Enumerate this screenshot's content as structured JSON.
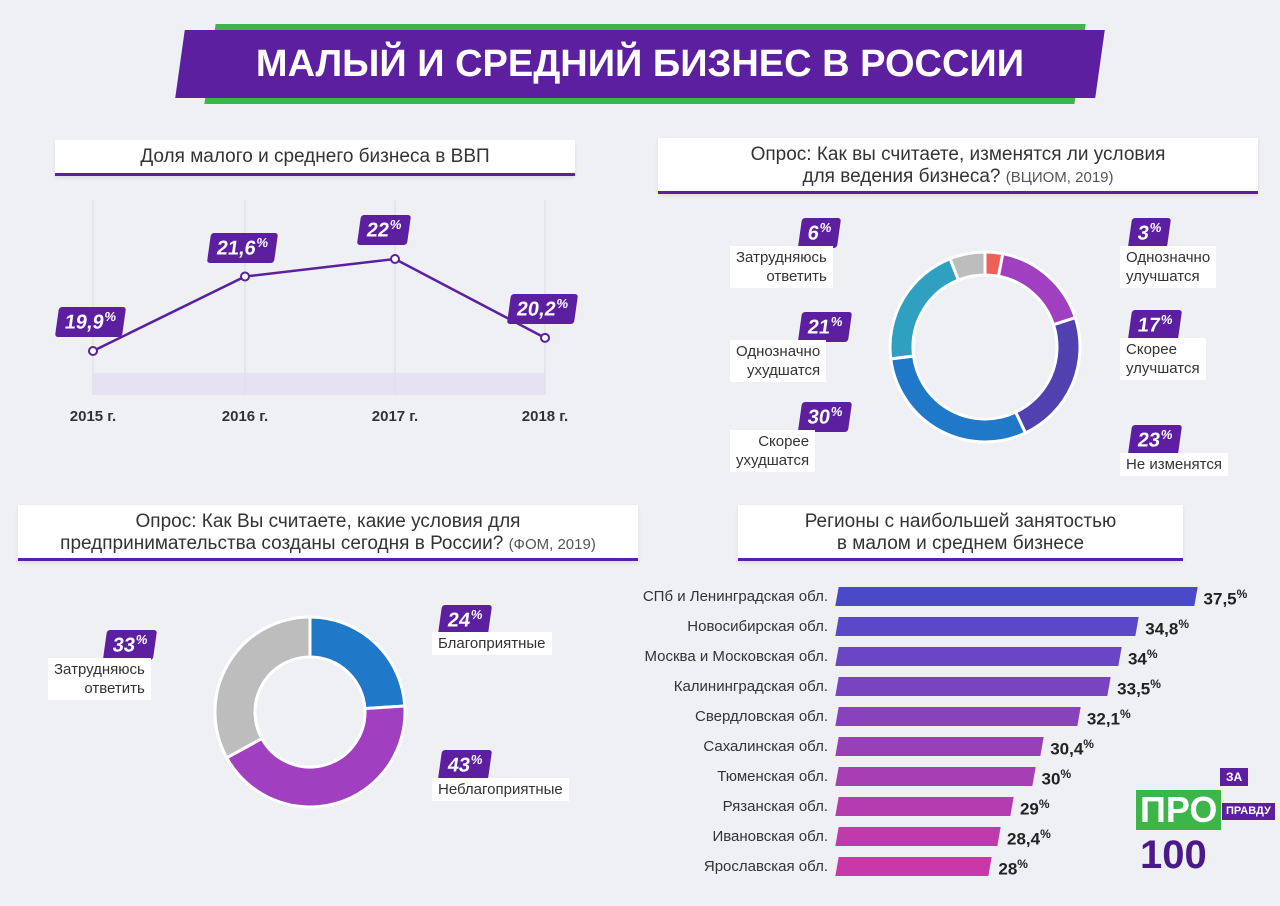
{
  "header": {
    "title": "МАЛЫЙ И СРЕДНИЙ БИЗНЕС В РОССИИ"
  },
  "colors": {
    "accent": "#5b1fa0",
    "green": "#3cb54a"
  },
  "chart_data": [
    {
      "type": "line",
      "title": "Доля малого и среднего бизнеса в ВВП",
      "categories": [
        "2015 г.",
        "2016 г.",
        "2017 г.",
        "2018 г."
      ],
      "values": [
        19.9,
        21.6,
        22,
        20.2
      ],
      "labels": [
        "19,9",
        "21,6",
        "22",
        "20,2"
      ],
      "unit": "%",
      "ylim": [
        18.9,
        22.3
      ],
      "color": "#5b1fa0"
    },
    {
      "type": "pie",
      "title": "Опрос: Как вы считаете, изменятся ли условия для ведения бизнеса?",
      "source": "(ВЦИОМ, 2019)",
      "title_line1": "Опрос: Как вы считаете, изменятся ли условия",
      "title_line2": "для ведения бизнеса?",
      "slices": [
        {
          "label": "Однозначно улучшатся",
          "line1": "Однозначно",
          "line2": "улучшатся",
          "value": 3,
          "color": "#f0605a"
        },
        {
          "label": "Скорее улучшатся",
          "line1": "Скорее",
          "line2": "улучшатся",
          "value": 17,
          "color": "#a040c0"
        },
        {
          "label": "Не изменятся",
          "line1": "Не изменятся",
          "line2": "",
          "value": 23,
          "color": "#5040b0"
        },
        {
          "label": "Скорее ухудшатся",
          "line1": "Скорее",
          "line2": "ухудшатся",
          "value": 30,
          "color": "#1f78c8"
        },
        {
          "label": "Однозначно ухудшатся",
          "line1": "Однозначно",
          "line2": "ухудшатся",
          "value": 21,
          "color": "#30a0c0"
        },
        {
          "label": "Затрудняюсь ответить",
          "line1": "Затрудняюсь",
          "line2": "ответить",
          "value": 6,
          "color": "#bdbdbd"
        }
      ]
    },
    {
      "type": "pie",
      "title_line1": "Опрос: Как Вы считаете, какие условия для",
      "title_line2": "предпринимательства созданы сегодня в России?",
      "source": "(ФОМ, 2019)",
      "slices": [
        {
          "label": "Благоприятные",
          "value": 24,
          "color": "#1f78c8"
        },
        {
          "label": "Неблагоприятные",
          "value": 43,
          "color": "#a040c0"
        },
        {
          "label": "Затрудняюсь ответить",
          "line1": "Затрудняюсь",
          "line2": "ответить",
          "value": 33,
          "color": "#bdbdbd"
        }
      ]
    },
    {
      "type": "bar",
      "orientation": "horizontal",
      "title_line1": "Регионы с наибольшей занятостью",
      "title_line2": "в малом и среднем бизнесе",
      "unit": "%",
      "categories": [
        "СПб и Ленинградская обл.",
        "Новосибирская обл.",
        "Москва и Московская обл.",
        "Калининградская обл.",
        "Свердловская обл.",
        "Сахалинская обл.",
        "Тюменская обл.",
        "Рязанская обл.",
        "Ивановская обл.",
        "Ярославская обл."
      ],
      "values": [
        37.5,
        34.8,
        34,
        33.5,
        32.1,
        30.4,
        30,
        29,
        28.4,
        28
      ],
      "labels": [
        "37,5",
        "34,8",
        "34",
        "33,5",
        "32,1",
        "30,4",
        "30",
        "29",
        "28,4",
        "28"
      ],
      "colors": [
        "#4a4ac8",
        "#5a48c8",
        "#6a46c4",
        "#7844c0",
        "#8842bc",
        "#9840b8",
        "#a83eb4",
        "#b43cb0",
        "#c03aac",
        "#c838a8"
      ]
    }
  ],
  "logo": {
    "text": "ПРО100 ЗА ПРАВДУ",
    "top": "ЗА",
    "main": "ПРО",
    "num": "100",
    "sub": "ПРАВДУ"
  }
}
